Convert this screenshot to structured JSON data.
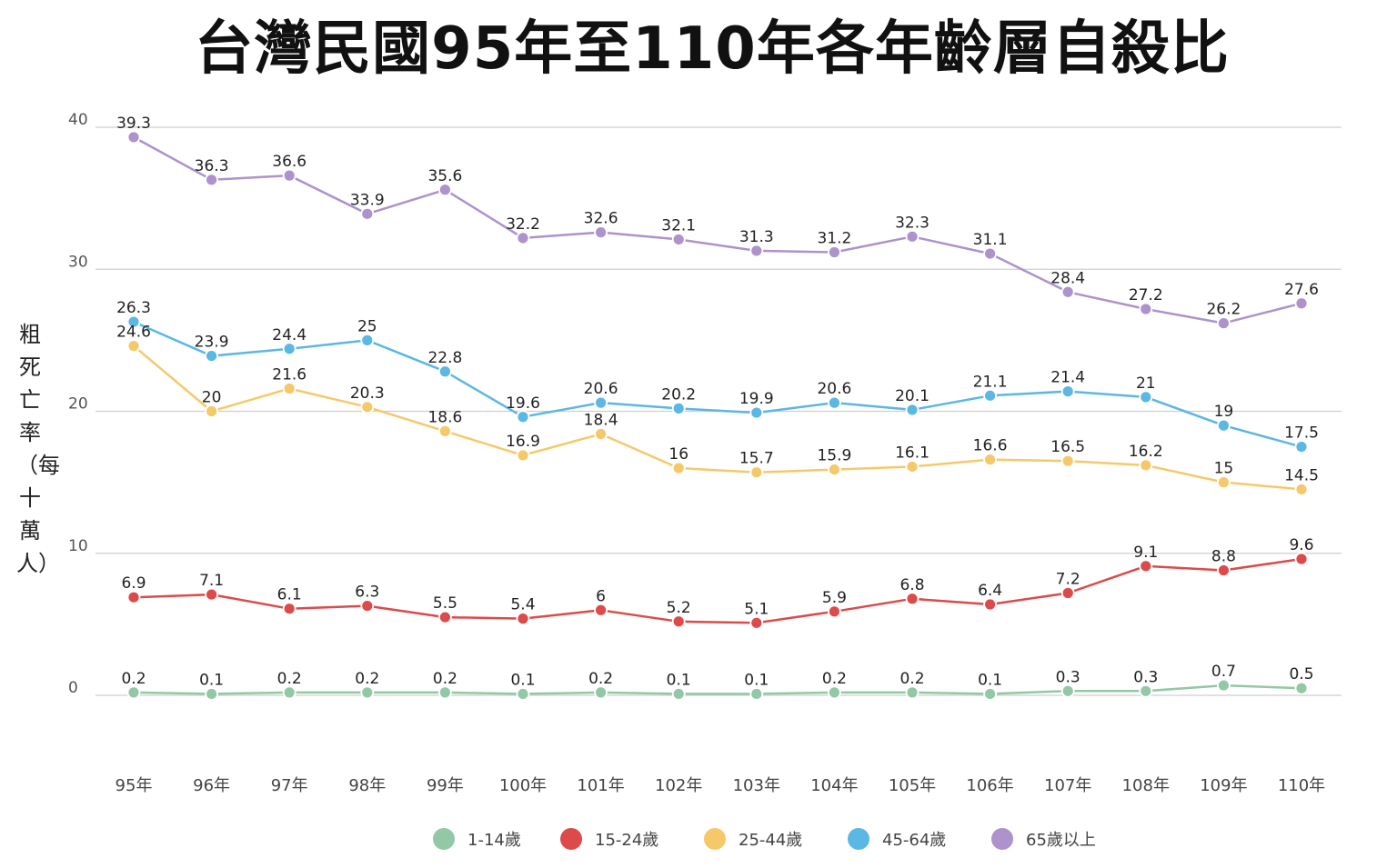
{
  "chart_data": {
    "type": "line",
    "title": "台灣民國95年至110年各年齡層自殺比",
    "xlabel": "",
    "ylabel": "粗死亡率（每十萬人）",
    "ylim": [
      0,
      40
    ],
    "yticks": [
      0,
      10,
      20,
      30,
      40
    ],
    "grid": true,
    "legend_position": "bottom",
    "categories": [
      "95年",
      "96年",
      "97年",
      "98年",
      "99年",
      "100年",
      "101年",
      "102年",
      "103年",
      "104年",
      "105年",
      "106年",
      "107年",
      "108年",
      "109年",
      "110年"
    ],
    "series": [
      {
        "name": "1-14歲",
        "color": "#93c8a6",
        "values": [
          0.2,
          0.1,
          0.2,
          0.2,
          0.2,
          0.1,
          0.2,
          0.1,
          0.1,
          0.2,
          0.2,
          0.1,
          0.3,
          0.3,
          0.7,
          0.5
        ]
      },
      {
        "name": "15-24歲",
        "color": "#dc4a4a",
        "values": [
          6.9,
          7.1,
          6.1,
          6.3,
          5.5,
          5.4,
          6,
          5.2,
          5.1,
          5.9,
          6.8,
          6.4,
          7.2,
          9.1,
          8.8,
          9.6
        ]
      },
      {
        "name": "25-44歲",
        "color": "#f5c96a",
        "values": [
          24.6,
          20,
          21.6,
          20.3,
          18.6,
          16.9,
          18.4,
          16,
          15.7,
          15.9,
          16.1,
          16.6,
          16.5,
          16.2,
          15,
          14.5
        ]
      },
      {
        "name": "45-64歲",
        "color": "#5bb7e3",
        "values": [
          26.3,
          23.9,
          24.4,
          25,
          22.8,
          19.6,
          20.6,
          20.2,
          19.9,
          20.6,
          20.1,
          21.1,
          21.4,
          21,
          19,
          17.5
        ]
      },
      {
        "name": "65歲以上",
        "color": "#ad92cc",
        "values": [
          39.3,
          36.3,
          36.6,
          33.9,
          35.6,
          32.2,
          32.6,
          32.1,
          31.3,
          31.2,
          32.3,
          31.1,
          28.4,
          27.2,
          26.2,
          27.6
        ]
      }
    ]
  }
}
